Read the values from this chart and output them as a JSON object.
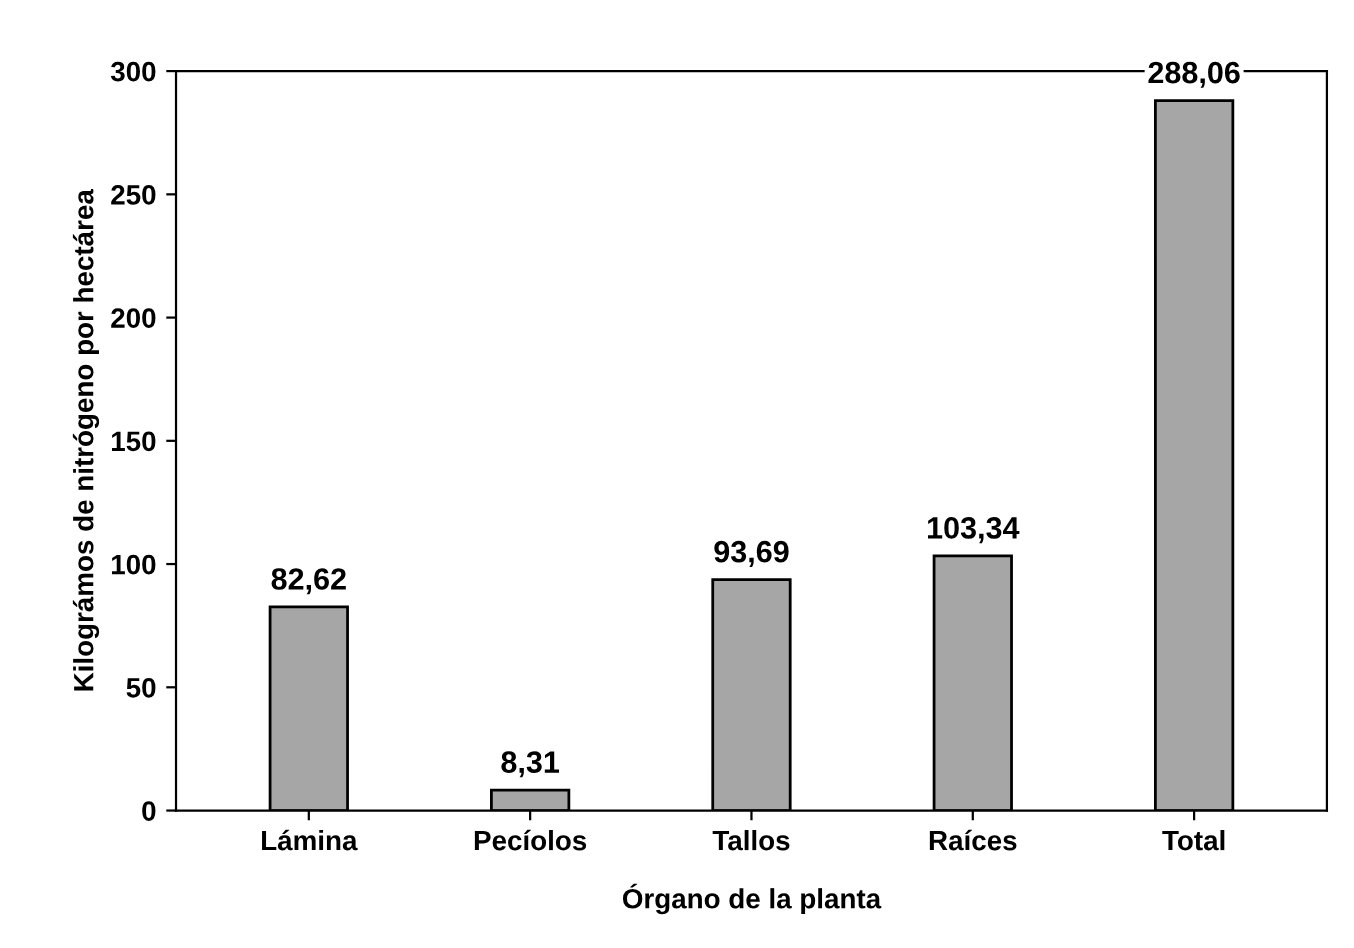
{
  "chart_data": {
    "type": "bar",
    "xlabel": "Órgano de la planta",
    "ylabel": "Kilográmos de nitrógeno por hectárea",
    "categories": [
      "Lámina",
      "Pecíolos",
      "Tallos",
      "Raíces",
      "Total"
    ],
    "values": [
      82.62,
      8.31,
      93.69,
      103.34,
      288.06
    ],
    "value_labels": [
      "82,62",
      "8,31",
      "93,69",
      "103,34",
      "288,06"
    ],
    "color": "#a6a6a6",
    "ylim": [
      0,
      300
    ],
    "yticks": [
      0,
      50,
      100,
      150,
      200,
      250,
      300
    ],
    "grid": false
  }
}
